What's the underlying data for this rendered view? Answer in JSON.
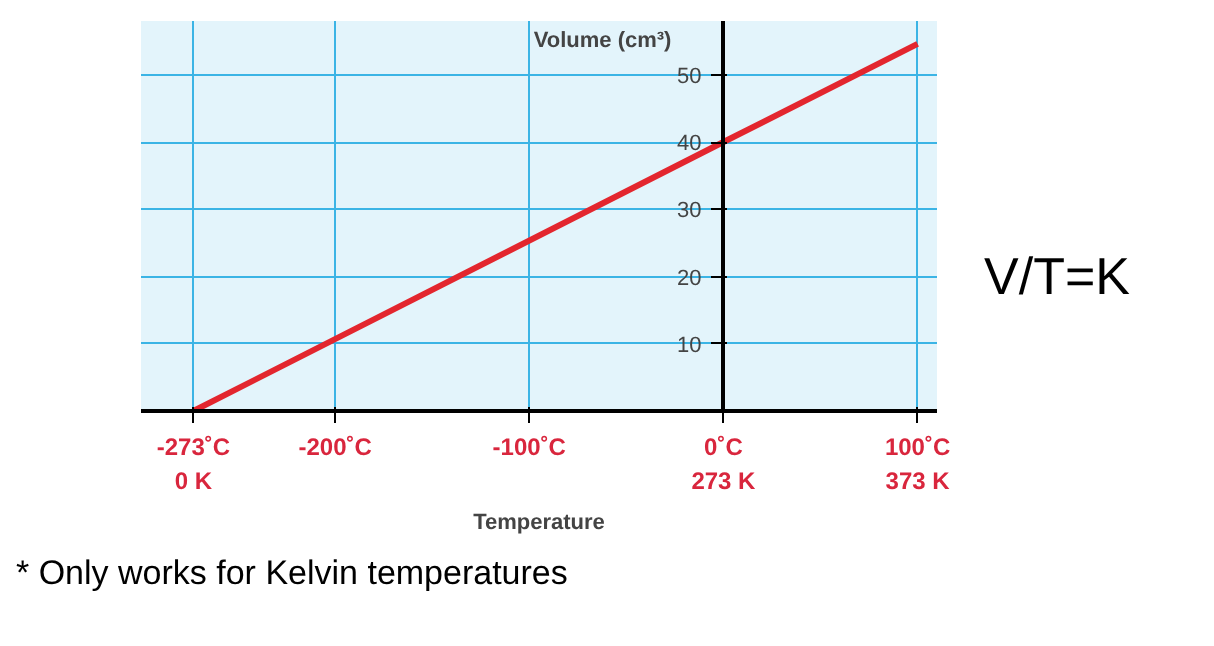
{
  "chart_data": {
    "type": "line",
    "xlabel": "Temperature",
    "ylabel": "Volume (cm³)",
    "x": [
      -273,
      0,
      100
    ],
    "series": [
      {
        "color": "#e3262e",
        "values": [
          0,
          40,
          54.6
        ]
      }
    ],
    "xlim": [
      -300,
      110
    ],
    "ylim": [
      0,
      58
    ],
    "xticks": [
      {
        "value": -273,
        "label": "-273˚C\n0 K"
      },
      {
        "value": -200,
        "label": "-200˚C"
      },
      {
        "value": -100,
        "label": "-100˚C"
      },
      {
        "value": 0,
        "label": "0˚C\n273 K"
      },
      {
        "value": 100,
        "label": "100˚C\n373 K"
      }
    ],
    "yticks": [
      10,
      20,
      30,
      40,
      50
    ],
    "grid": true,
    "annotations": [
      "V/T=K",
      "* Only works for Kelvin temperatures"
    ]
  }
}
